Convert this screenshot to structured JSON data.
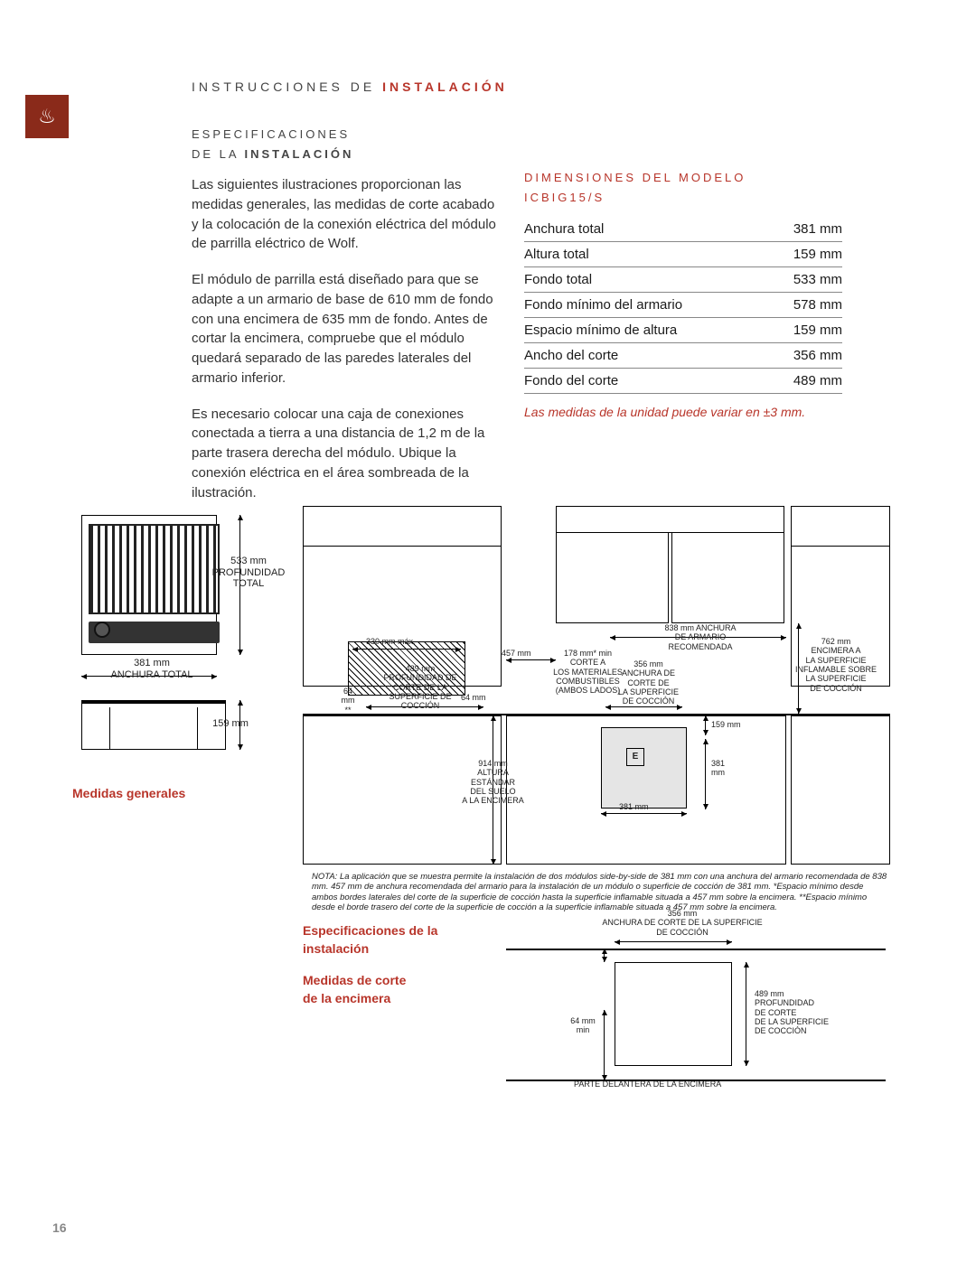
{
  "page_number": "16",
  "accent_color": "#b8352a",
  "header": {
    "prefix": "INSTRUCCIONES DE",
    "accent": "INSTALACIÓN"
  },
  "subheader": {
    "line1": "ESPECIFICACIONES",
    "line2_prefix": "DE LA",
    "line2_accent": "INSTALACIÓN"
  },
  "paragraphs": {
    "p1": "Las siguientes ilustraciones proporcionan las medidas generales, las medidas de corte acabado y la colocación de la conexión eléctrica del módulo de parrilla eléctrico de Wolf.",
    "p2": "El módulo de parrilla está diseñado para que se adapte a un armario de base de 610 mm de fondo con una encimera de 635 mm de fondo. Antes de cortar la encimera, compruebe que el módulo quedará separado de las paredes laterales del armario inferior.",
    "p3": "Es necesario colocar una caja de conexiones conectada a tierra a una distancia de 1,2 m de la parte trasera derecha del módulo. Ubique la conexión eléctrica en el área sombreada de la ilustración."
  },
  "dim_title": {
    "l1": "DIMENSIONES DEL MODELO",
    "l2": "ICBIG15/S"
  },
  "specs": [
    {
      "label": "Anchura total",
      "value": "381 mm"
    },
    {
      "label": "Altura total",
      "value": "159 mm"
    },
    {
      "label": "Fondo total",
      "value": "533 mm"
    },
    {
      "label": "Fondo mínimo del armario",
      "value": "578 mm"
    },
    {
      "label": "Espacio mínimo de altura",
      "value": "159 mm"
    },
    {
      "label": "Ancho del corte",
      "value": "356 mm"
    },
    {
      "label": "Fondo del corte",
      "value": "489 mm"
    }
  ],
  "spec_note": "Las medidas de la unidad puede variar en ±3 mm.",
  "diagram": {
    "overall": {
      "depth_label": "533 mm\nPROFUNDIDAD\nTOTAL",
      "width_label": "381 mm\nANCHURA TOTAL",
      "height_label": "159 mm",
      "caption": "Medidas generales"
    },
    "cabinet": {
      "l_330": "330 mm máx.",
      "l_489": "489 mm\nPROFUNDIDAD DE\nCORTE DE LA\nSUPERFICIE DE\nCOCCIÓN",
      "l_64": "64\nmm\n**",
      "l_64b": "64 mm",
      "l_457": "457 mm",
      "l_914": "914 mm\nALTURA\nESTÁNDAR\nDEL SUELO\nA LA ENCIMERA",
      "l_178": "178 mm* min\nCORTE A\nLOS MATERIALES\nCOMBUSTIBLES\n(AMBOS LADOS)",
      "l_356": "356 mm\nANCHURA DE\nCORTE DE\nLA SUPERFICIE\nDE COCCIÓN",
      "l_838": "838 mm ANCHURA\nDE ARMARIO\nRECOMENDADA",
      "l_762": "762 mm\nENCIMERA A\nLA SUPERFICIE\nINFLAMABLE SOBRE\nLA SUPERFICIE\nDE COCCIÓN",
      "l_159": "159 mm",
      "l_381v": "381\nmm",
      "l_381h": "381 mm",
      "e": "E"
    },
    "footnote": "NOTA: La aplicación que se muestra permite la instalación de dos módulos side-by-side de 381 mm con una anchura del armario recomendada de  838 mm. 457 mm de anchura recomendada del armario para la instalación de un módulo o superficie de cocción de 381 mm. *Espacio mínimo desde ambos bordes laterales del corte de la superficie de cocción hasta la superficie inflamable situada a 457 mm sobre la encimera. **Espacio mínimo desde el borde trasero del corte de la superficie de cocción a la superficie inflamable situada a 457 mm sobre la encimera.",
    "cutout": {
      "caption1": "Especificaciones de la instalación",
      "caption2": "Medidas de corte\nde la encimera",
      "l_356": "356 mm\nANCHURA DE CORTE DE LA SUPERFICIE\nDE COCCIÓN",
      "l_489": "489 mm\nPROFUNDIDAD\nDE CORTE\nDE LA SUPERFICIE\nDE COCCIÓN",
      "l_64": "64 mm\nmin",
      "front": "PARTE DELANTERA DE LA ENCIMERA"
    }
  }
}
